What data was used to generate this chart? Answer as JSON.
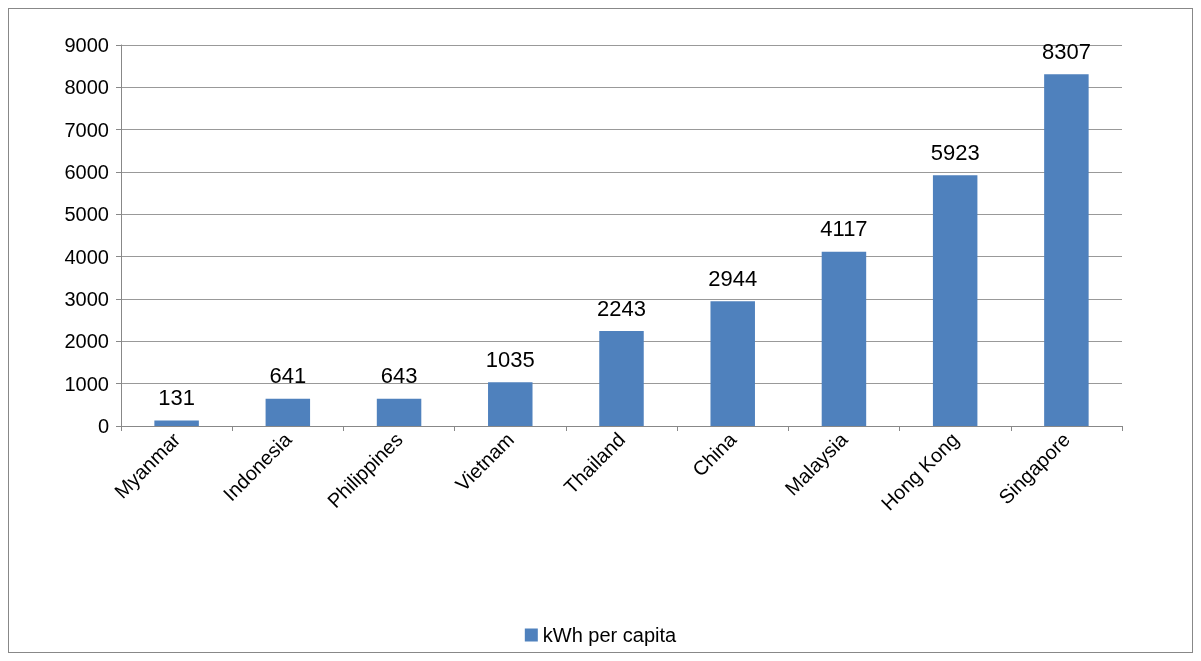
{
  "chart_data": {
    "type": "bar",
    "categories": [
      "Myanmar",
      "Indonesia",
      "Philippines",
      "Vietnam",
      "Thailand",
      "China",
      "Malaysia",
      "Hong Kong",
      "Singapore"
    ],
    "series": [
      {
        "name": "kWh per capita",
        "color": "#4f81bd",
        "values": [
          131,
          641,
          643,
          1035,
          2243,
          2944,
          4117,
          5923,
          8307
        ]
      }
    ],
    "ylim": [
      0,
      9000
    ],
    "yticks": [
      0,
      1000,
      2000,
      3000,
      4000,
      5000,
      6000,
      7000,
      8000,
      9000
    ],
    "grid": "y",
    "data_labels": true,
    "legend": "bottom"
  }
}
